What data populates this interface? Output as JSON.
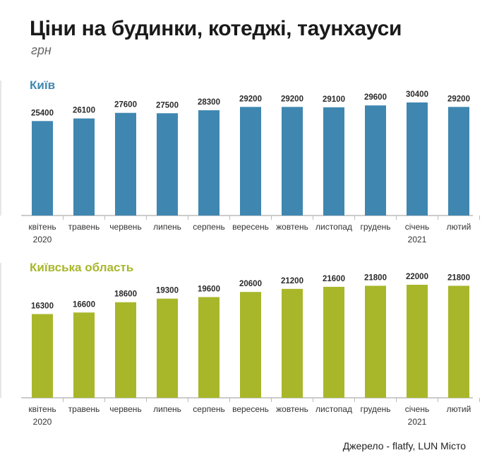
{
  "title": "Ціни на будинки, котеджі, таунхауси",
  "subtitle": "грн",
  "source": "Джерело - flatfy, LUN Місто",
  "colors": {
    "kyiv": "#3f87b1",
    "oblast": "#a8b72a"
  },
  "chart_data": [
    {
      "type": "bar",
      "title": "Київ",
      "categories": [
        "квітень",
        "травень",
        "червень",
        "липень",
        "серпень",
        "вересень",
        "жовтень",
        "листопад",
        "грудень",
        "січень",
        "лютий"
      ],
      "year_labels": [
        "2020",
        "",
        "",
        "",
        "",
        "",
        "",
        "",
        "",
        "2021",
        ""
      ],
      "values": [
        25400,
        26100,
        27600,
        27500,
        28300,
        29200,
        29200,
        29100,
        29600,
        30400,
        29200
      ],
      "color": "#3f87b1"
    },
    {
      "type": "bar",
      "title": "Київська область",
      "categories": [
        "квітень",
        "травень",
        "червень",
        "липень",
        "серпень",
        "вересень",
        "жовтень",
        "листопад",
        "грудень",
        "січень",
        "лютий"
      ],
      "year_labels": [
        "2020",
        "",
        "",
        "",
        "",
        "",
        "",
        "",
        "",
        "2021",
        ""
      ],
      "values": [
        16300,
        16600,
        18600,
        19300,
        19600,
        20600,
        21200,
        21600,
        21800,
        22000,
        21800
      ],
      "color": "#a8b72a"
    }
  ]
}
